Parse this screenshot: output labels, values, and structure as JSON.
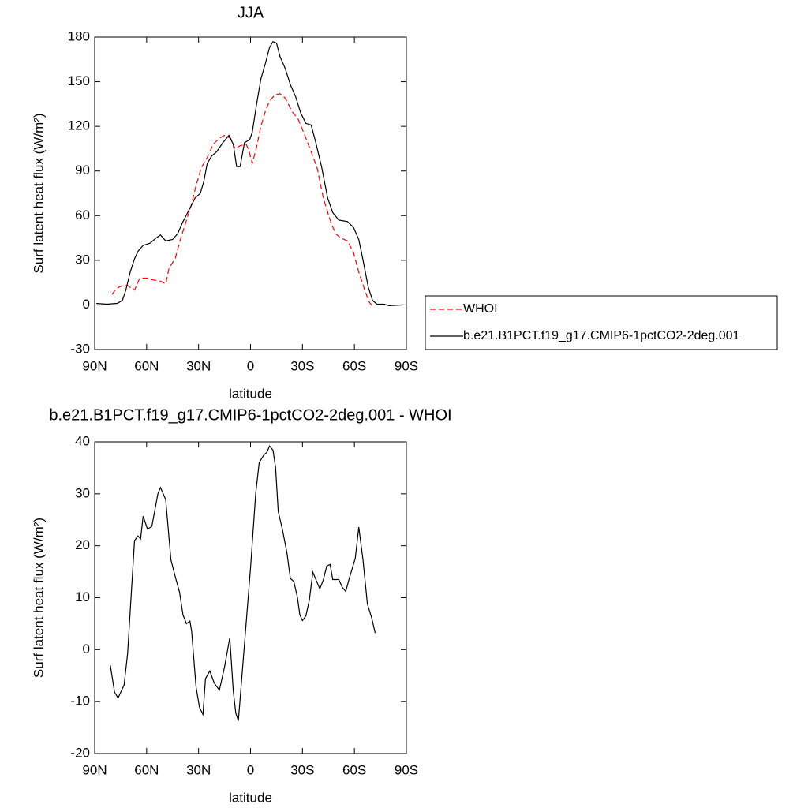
{
  "chart_data": [
    {
      "type": "line",
      "title": "JJA",
      "xlabel": "latitude",
      "ylabel": "Surf latent heat flux (W/m²)",
      "xlim": [
        90,
        -90
      ],
      "xticks": [
        {
          "value": 90,
          "label": "90N"
        },
        {
          "value": 60,
          "label": "60N"
        },
        {
          "value": 30,
          "label": "30N"
        },
        0,
        {
          "value": -30,
          "label": "30S"
        },
        {
          "value": -60,
          "label": "60S"
        },
        {
          "value": -90,
          "label": "90S"
        }
      ],
      "ylim": [
        -30,
        180
      ],
      "yticks": [
        -30,
        0,
        30,
        60,
        90,
        120,
        150,
        180
      ],
      "legend": "right",
      "series": [
        {
          "name": "WHOI",
          "color": "#ff0000",
          "linestyle": "dashed",
          "x": [
            80,
            77.5,
            74,
            71,
            67,
            64,
            60,
            57,
            52,
            49,
            47,
            43.5,
            41,
            37.5,
            34.5,
            31.5,
            28.5,
            25,
            21.5,
            18,
            15,
            11.5,
            9,
            6,
            2.5,
            1,
            -1,
            -3.5,
            -6,
            -8.5,
            -11,
            -14,
            -17,
            -20,
            -24,
            -27.5,
            -31,
            -35,
            -38.5,
            -42,
            -46,
            -49,
            -52,
            -56,
            -59.5,
            -62.5,
            -66,
            -68.5,
            -71
          ],
          "values": [
            7,
            11,
            13,
            13,
            10,
            18,
            18,
            17,
            16,
            14,
            25,
            31,
            42,
            55,
            66,
            80,
            92,
            99,
            108,
            112,
            114,
            112,
            105,
            107,
            108,
            104,
            95,
            106,
            120,
            130,
            137,
            141,
            142,
            139,
            130,
            125,
            115,
            103,
            92,
            72,
            57,
            48,
            45,
            43,
            35,
            22,
            10,
            2,
            -1.5
          ]
        },
        {
          "name": "b.e21.B1PCT.f19_g17.CMIP6-1pctCO2-2deg.001",
          "color": "#000000",
          "linestyle": "solid",
          "x": [
            89,
            83,
            77,
            74,
            72,
            69.5,
            67,
            65,
            62,
            58,
            54.5,
            52,
            49,
            45,
            42,
            39,
            35,
            32,
            29,
            27,
            25,
            22.5,
            19.5,
            16,
            12.5,
            10,
            8,
            6,
            3.5,
            0.5,
            -1,
            -3.5,
            -6,
            -8.5,
            -11,
            -13,
            -15,
            -17,
            -20,
            -23,
            -26,
            -29,
            -32,
            -35,
            -37.5,
            -41,
            -44.5,
            -47.5,
            -51,
            -56,
            -59.5,
            -62.5,
            -65,
            -68,
            -70.5,
            -73,
            -77,
            -80,
            -88
          ],
          "values": [
            1,
            0.5,
            1,
            3,
            10,
            22,
            31,
            36,
            40,
            41.5,
            45,
            47,
            43,
            44,
            48,
            56,
            65,
            72,
            75,
            83,
            95,
            100,
            103,
            109,
            114,
            108,
            93,
            93,
            109,
            111,
            116,
            135,
            152,
            162,
            173,
            177,
            176,
            167,
            159,
            148,
            140,
            129,
            122,
            121,
            110,
            93,
            72,
            62,
            57,
            56,
            52,
            44,
            30,
            12,
            3,
            0.5,
            0.5,
            -0.5,
            0
          ]
        }
      ]
    },
    {
      "type": "line",
      "title": "b.e21.B1PCT.f19_g17.CMIP6-1pctCO2-2deg.001 - WHOI",
      "xlabel": "latitude",
      "ylabel": "Surf latent heat flux (W/m²)",
      "xlim": [
        90,
        -90
      ],
      "xticks": [
        {
          "value": 90,
          "label": "90N"
        },
        {
          "value": 60,
          "label": "60N"
        },
        {
          "value": 30,
          "label": "30N"
        },
        0,
        {
          "value": -30,
          "label": "30S"
        },
        {
          "value": -60,
          "label": "60S"
        },
        {
          "value": -90,
          "label": "90S"
        }
      ],
      "ylim": [
        -20,
        40
      ],
      "yticks": [
        -20,
        -10,
        0,
        10,
        20,
        30,
        40
      ],
      "series": [
        {
          "color": "#000000",
          "linestyle": "solid",
          "x": [
            81,
            78.5,
            76.5,
            73,
            71,
            67,
            65,
            63.5,
            62,
            59.5,
            57,
            53.5,
            52,
            49,
            46,
            43.5,
            41,
            39,
            37,
            35,
            34,
            31.5,
            29.5,
            27.5,
            26,
            23.5,
            21,
            18,
            15,
            12,
            10,
            8.5,
            7,
            0,
            -3,
            -5,
            -7.5,
            -9.5,
            -11,
            -13,
            -14.5,
            -16,
            -18.5,
            -21,
            -23,
            -25,
            -27,
            -28.5,
            -30,
            -32,
            -34,
            -36,
            -37.5,
            -40,
            -42,
            -44,
            -46,
            -47.5,
            -51,
            -53,
            -55,
            -57,
            -60.5,
            -62.5,
            -65,
            -67.5,
            -70,
            -72
          ],
          "values": [
            -3,
            -8.2,
            -9.3,
            -6.8,
            -0.8,
            21,
            21.9,
            21.3,
            25.7,
            23.2,
            23.7,
            30,
            31.2,
            28.9,
            17.3,
            14.1,
            11.1,
            6.7,
            5,
            5.5,
            3.5,
            -7.1,
            -11.1,
            -12.5,
            -5.6,
            -4.1,
            -6.4,
            -7.8,
            -3.3,
            2.3,
            -7.9,
            -12.2,
            -13.7,
            15.7,
            30.1,
            36,
            37.4,
            38,
            39.2,
            38.4,
            35,
            26.6,
            23,
            18.7,
            13.7,
            13.1,
            10.2,
            6.7,
            5.6,
            6.5,
            9.6,
            14.9,
            13.7,
            11.7,
            13.4,
            16.1,
            16.4,
            13.5,
            13.5,
            12,
            11.2,
            13.7,
            17.6,
            23.6,
            17.2,
            8.8,
            6.1,
            3.2
          ]
        }
      ]
    }
  ]
}
